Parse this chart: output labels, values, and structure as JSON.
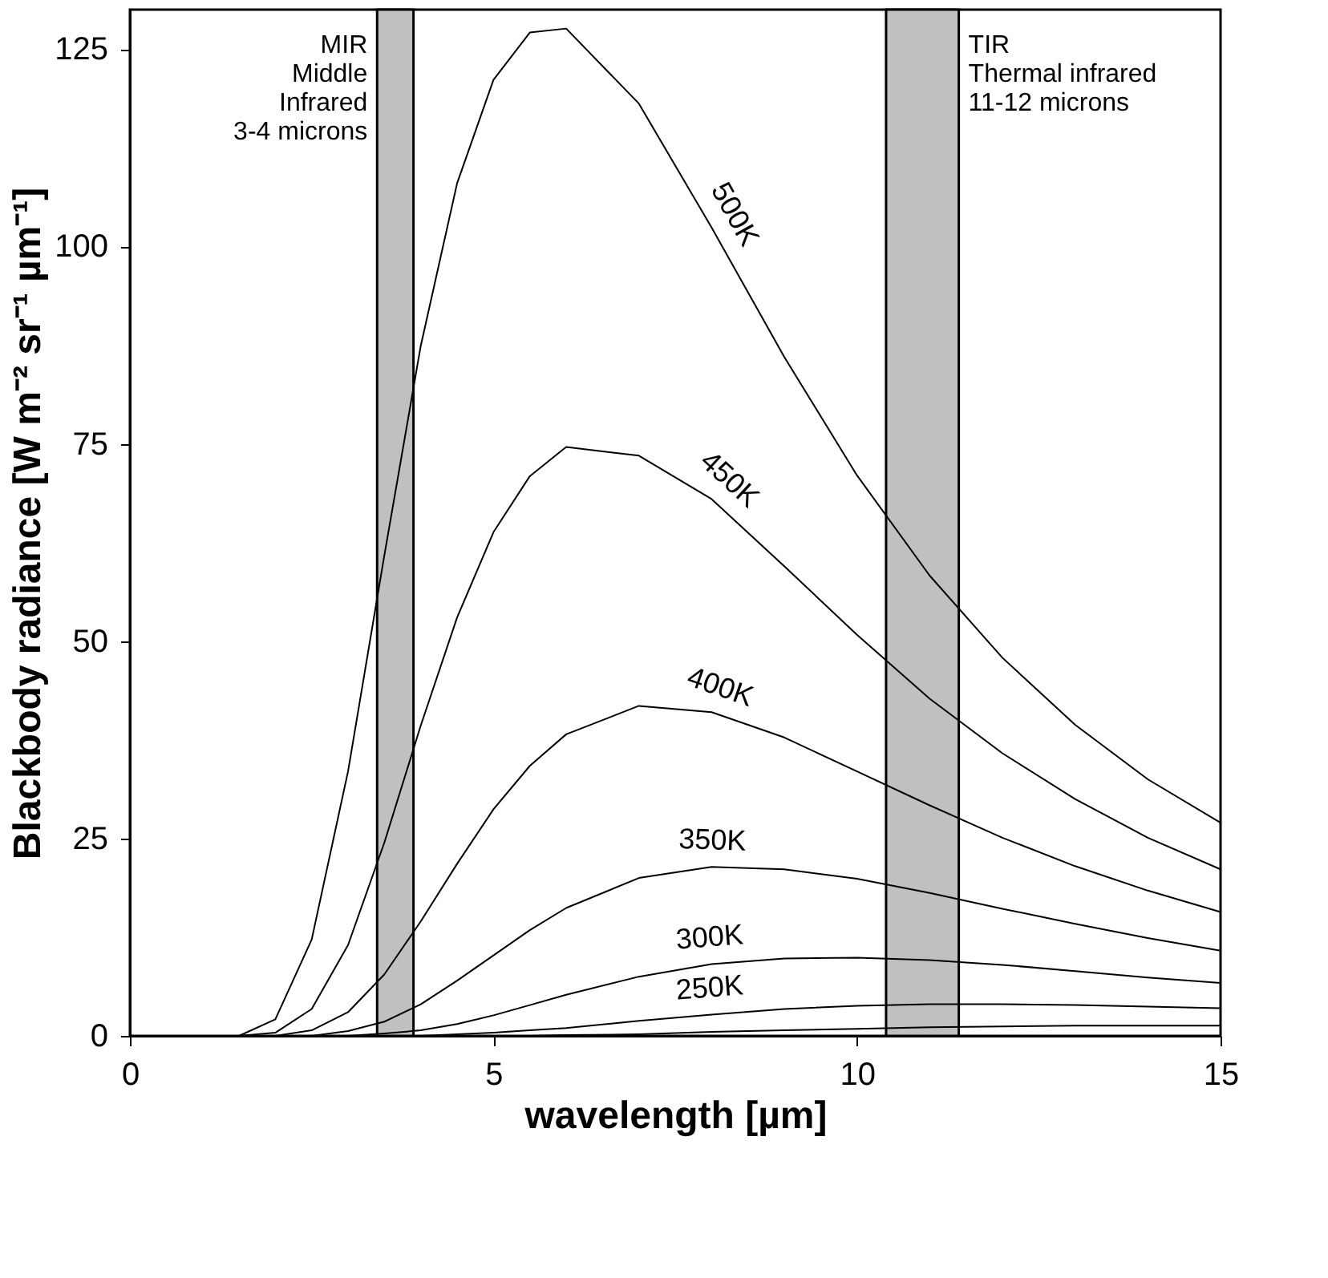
{
  "chart_data": {
    "type": "line",
    "xlabel": "wavelength [µm]",
    "ylabel": "Blackbody radiance [W m⁻² sr⁻¹ µm⁻¹]",
    "x": [
      1,
      1.5,
      2,
      2.5,
      3,
      3.5,
      4,
      4.5,
      5,
      5.5,
      6,
      7,
      8,
      9,
      10,
      11,
      12,
      13,
      14,
      15
    ],
    "series": [
      {
        "name": "500K",
        "color": "#000000",
        "values": [
          0,
          0,
          2.1,
          12.2,
          33.5,
          60.9,
          87.4,
          108,
          121.1,
          127.1,
          127.6,
          118.1,
          102.4,
          86,
          71,
          58.3,
          47.9,
          39.4,
          32.5,
          27
        ]
      },
      {
        "name": "450K",
        "color": "#000000",
        "values": [
          0,
          0,
          0.4,
          3.4,
          11.5,
          24.5,
          39.3,
          53,
          63.8,
          70.9,
          74.6,
          73.5,
          68,
          59.5,
          50.8,
          42.7,
          35.8,
          30,
          25.1,
          21.1
        ]
      },
      {
        "name": "400K",
        "color": "#000000",
        "values": [
          0,
          0,
          0,
          0.7,
          3,
          7.8,
          14.5,
          21.8,
          28.7,
          34.2,
          38.2,
          41.8,
          41,
          37.8,
          33.5,
          29.2,
          25.1,
          21.5,
          18.4,
          15.7
        ]
      },
      {
        "name": "350K",
        "color": "#000000",
        "values": [
          0,
          0,
          0,
          0,
          0.6,
          1.8,
          4,
          7,
          10.2,
          13.4,
          16.2,
          20,
          21.4,
          21.1,
          19.9,
          18.1,
          16.1,
          14.2,
          12.4,
          10.8
        ]
      },
      {
        "name": "300K",
        "color": "#000000",
        "values": [
          0,
          0,
          0,
          0,
          0,
          0.3,
          0.7,
          1.5,
          2.6,
          3.9,
          5.2,
          7.5,
          9.1,
          9.8,
          9.9,
          9.6,
          9,
          8.2,
          7.4,
          6.7
        ]
      },
      {
        "name": "250K",
        "color": "#000000",
        "values": [
          0,
          0,
          0,
          0,
          0,
          0,
          0,
          0.2,
          0.4,
          0.7,
          1,
          1.9,
          2.7,
          3.4,
          3.8,
          4,
          4,
          3.9,
          3.7,
          3.5
        ]
      },
      {
        "color": "#000000",
        "values": [
          0,
          0,
          0,
          0,
          0,
          0,
          0,
          0,
          0,
          0,
          0.1,
          0.2,
          0.5,
          0.7,
          0.9,
          1.1,
          1.2,
          1.3,
          1.3,
          1.3
        ]
      }
    ],
    "bands": [
      {
        "axis": "x",
        "from": 3.4,
        "to": 3.9,
        "label": "MIR\nMiddle\nInfrared\n3-4 microns",
        "color": "#c0c0c0"
      },
      {
        "axis": "x",
        "from": 10.4,
        "to": 11.4,
        "label": "TIR\nThermal infrared\n11-12 microns",
        "color": "#c0c0c0"
      }
    ],
    "xlim": [
      0,
      15
    ],
    "xticks": [
      0,
      5,
      10,
      15
    ],
    "ylim": [
      0,
      130
    ],
    "yticks": [
      0,
      25,
      50,
      75,
      100,
      125
    ]
  }
}
